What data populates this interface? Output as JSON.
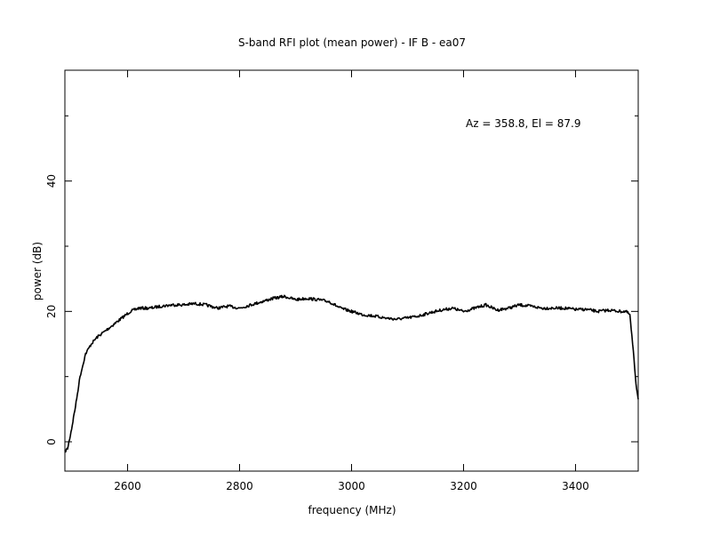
{
  "chart_data": {
    "type": "line",
    "title": "S-band RFI plot (mean power) - IF B - ea07",
    "xlabel": "frequency (MHz)",
    "ylabel": "power (dB)",
    "annotation": "Az = 358.8, El = 87.9",
    "xlim": [
      2488,
      3512
    ],
    "ylim": [
      -4.5,
      57
    ],
    "x_ticks": [
      2600,
      2800,
      3000,
      3200,
      3400
    ],
    "y_ticks": [
      0,
      20,
      40
    ],
    "grid": false,
    "legend": "none",
    "line_color": "#000000",
    "series": [
      {
        "x": [
          2488,
          2493,
          2500,
          2508,
          2515,
          2525,
          2535,
          2545,
          2560,
          2575,
          2590,
          2605,
          2620,
          2640,
          2660,
          2680,
          2700,
          2720,
          2740,
          2760,
          2780,
          2800,
          2820,
          2840,
          2860,
          2880,
          2900,
          2920,
          2940,
          2960,
          2980,
          3000,
          3020,
          3040,
          3060,
          3080,
          3100,
          3120,
          3140,
          3160,
          3180,
          3200,
          3220,
          3240,
          3260,
          3280,
          3300,
          3320,
          3340,
          3360,
          3380,
          3400,
          3420,
          3440,
          3460,
          3480,
          3490,
          3497,
          3502,
          3508,
          3512
        ],
        "y": [
          -1.5,
          -1,
          2,
          6,
          10,
          13.5,
          15,
          16,
          17,
          18,
          19,
          20,
          20.5,
          20.5,
          20.8,
          21,
          21,
          21.2,
          21,
          20.5,
          20.8,
          20.5,
          21,
          21.5,
          22,
          22.3,
          21.8,
          22,
          21.8,
          21.5,
          20.5,
          20,
          19.5,
          19.3,
          19,
          18.8,
          19,
          19.3,
          19.8,
          20.2,
          20.5,
          20,
          20.5,
          21,
          20.2,
          20.5,
          21,
          20.8,
          20.5,
          20.5,
          20.5,
          20.3,
          20.3,
          20,
          20.2,
          20,
          20,
          19.5,
          15,
          9,
          6.5
        ]
      }
    ]
  }
}
